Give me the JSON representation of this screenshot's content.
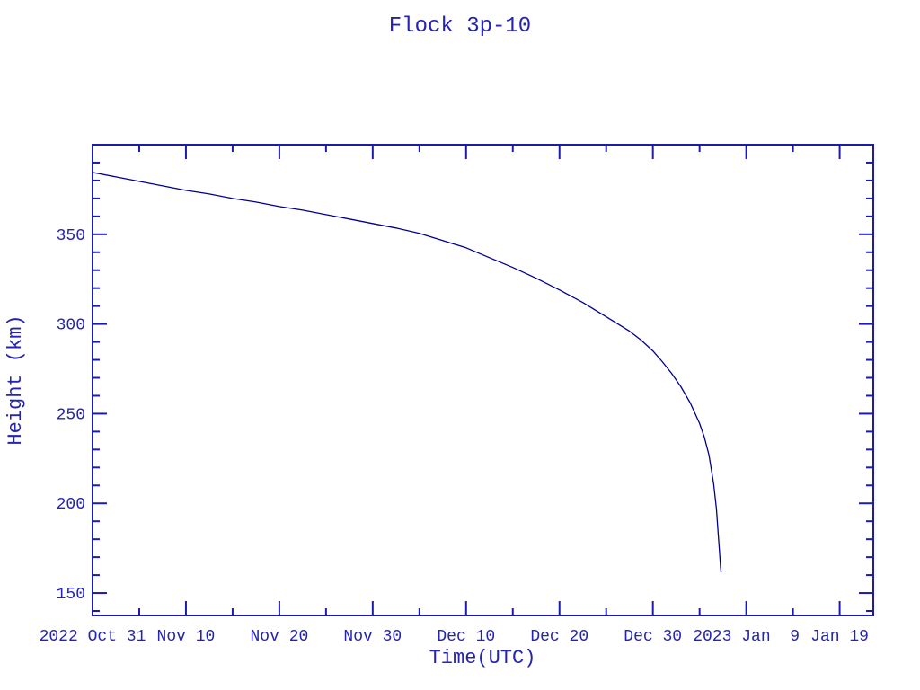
{
  "page": {
    "background": "#ffffff"
  },
  "colors": {
    "text": "#2424b0",
    "frame": "#1c1caa",
    "line": "#00008b"
  },
  "chart_data": {
    "type": "line",
    "title": "Flock 3p-10",
    "xlabel": "Time(UTC)",
    "ylabel": "Height (km)",
    "x_unit": "days since 2022 Oct 31 00:00 UTC",
    "xlim": [
      0,
      83.6
    ],
    "ylim": [
      137.5,
      400
    ],
    "grid": false,
    "legend": "none",
    "x_major_ticks": [
      0,
      10,
      20,
      30,
      40,
      50,
      60,
      70,
      80
    ],
    "x_tick_labels": [
      "2022 Oct 31",
      "Nov 10",
      "Nov 20",
      "Nov 30",
      "Dec 10",
      "Dec 20",
      "Dec 30",
      "2023 Jan  9",
      "Jan 19"
    ],
    "x_minor_ticks": [
      5,
      15,
      25,
      35,
      45,
      55,
      65,
      75
    ],
    "y_major_ticks": [
      150,
      200,
      250,
      300,
      350
    ],
    "y_tick_labels": [
      "150",
      "200",
      "250",
      "300",
      "350"
    ],
    "y_minor_ticks": [
      140,
      160,
      170,
      180,
      190,
      210,
      220,
      230,
      240,
      260,
      270,
      280,
      290,
      310,
      320,
      330,
      340,
      360,
      370,
      380,
      390
    ],
    "series": [
      {
        "name": "Flock 3p-10 height",
        "points": [
          [
            0,
            384.5
          ],
          [
            2.5,
            382
          ],
          [
            5,
            379.5
          ],
          [
            7.5,
            377
          ],
          [
            10,
            374.5
          ],
          [
            12.5,
            372.5
          ],
          [
            15,
            370
          ],
          [
            17.5,
            368
          ],
          [
            20,
            365.5
          ],
          [
            22.5,
            363.5
          ],
          [
            25,
            361
          ],
          [
            27.5,
            358.5
          ],
          [
            30,
            356
          ],
          [
            32.5,
            353.5
          ],
          [
            35,
            350.5
          ],
          [
            37.5,
            346.5
          ],
          [
            40,
            342.5
          ],
          [
            42.5,
            337
          ],
          [
            45,
            331.5
          ],
          [
            47.5,
            325.5
          ],
          [
            50,
            319
          ],
          [
            52.5,
            312
          ],
          [
            55,
            304
          ],
          [
            57.5,
            296
          ],
          [
            58.75,
            291
          ],
          [
            60,
            285
          ],
          [
            61,
            279
          ],
          [
            62,
            272.5
          ],
          [
            63,
            265
          ],
          [
            64,
            256
          ],
          [
            65,
            244.5
          ],
          [
            65.5,
            237
          ],
          [
            66,
            227
          ],
          [
            66.5,
            211
          ],
          [
            66.8,
            197
          ],
          [
            67,
            183
          ],
          [
            67.15,
            172
          ],
          [
            67.25,
            164.5
          ],
          [
            67.3,
            161.5
          ]
        ]
      }
    ]
  }
}
